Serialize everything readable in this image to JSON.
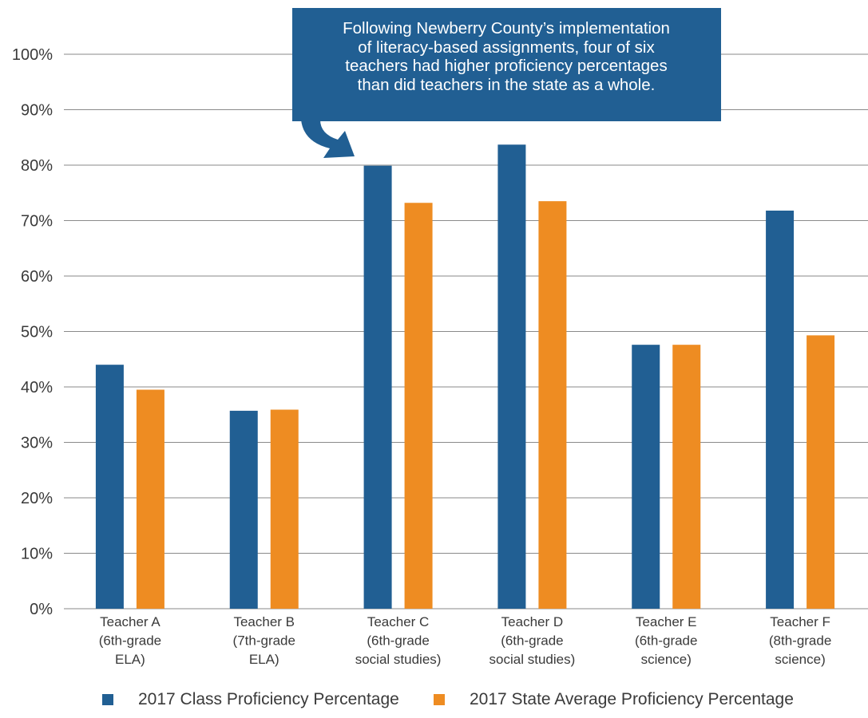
{
  "chart_data": {
    "type": "bar",
    "categories": [
      [
        "Teacher A",
        "(6th-grade",
        "ELA)"
      ],
      [
        "Teacher B",
        "(7th-grade",
        "ELA)"
      ],
      [
        "Teacher C",
        "(6th-grade",
        "social studies)"
      ],
      [
        "Teacher D",
        "(6th-grade",
        "social studies)"
      ],
      [
        "Teacher E",
        "(6th-grade",
        "science)"
      ],
      [
        "Teacher F",
        "(8th-grade",
        "science)"
      ]
    ],
    "series": [
      {
        "name": "2017 Class Proficiency Percentage",
        "color": "#215f93",
        "values": [
          44,
          35.7,
          79.9,
          83.7,
          47.6,
          71.8
        ]
      },
      {
        "name": "2017 State Average Proficiency Percentage",
        "color": "#ee8c22",
        "values": [
          39.5,
          35.9,
          73.2,
          73.5,
          47.6,
          49.3
        ]
      }
    ],
    "ylim": [
      0,
      100
    ],
    "yticks": [
      "0%",
      "10%",
      "20%",
      "30%",
      "40%",
      "50%",
      "60%",
      "70%",
      "80%",
      "90%",
      "100%"
    ],
    "grid": true,
    "legend_position": "bottom",
    "annotation": {
      "lines": [
        "Following Newberry County’s implementation",
        "of literacy-based assignments, four of six",
        "teachers had higher proficiency percentages",
        "than did teachers in the state as a whole."
      ],
      "color": "#215f93",
      "target_category": "Teacher C"
    }
  }
}
